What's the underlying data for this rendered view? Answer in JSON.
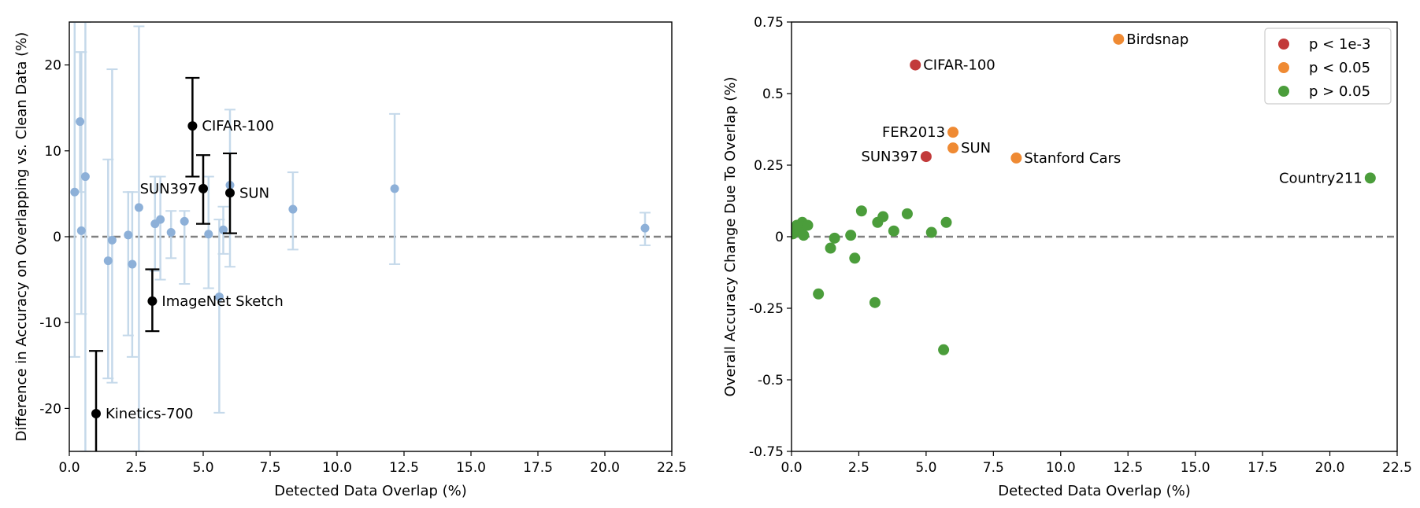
{
  "chart_data": [
    {
      "type": "scatter",
      "xlabel": "Detected Data Overlap (%)",
      "ylabel": "Difference in Accuracy on Overlapping vs. Clean Data (%)",
      "xlim": [
        0,
        22.5
      ],
      "ylim": [
        -25,
        25
      ],
      "xticks": [
        0,
        2.5,
        5,
        7.5,
        10,
        12.5,
        15,
        17.5,
        20,
        22.5
      ],
      "xtick_labels": [
        "0.0",
        "2.5",
        "5.0",
        "7.5",
        "10.0",
        "12.5",
        "15.0",
        "17.5",
        "20.0",
        "22.5"
      ],
      "yticks": [
        -20,
        -10,
        0,
        10,
        20
      ],
      "ytick_labels": [
        "-20",
        "-10",
        "0",
        "10",
        "20"
      ],
      "reference_line_y": 0,
      "colors": {
        "background_points": "#8db0d8",
        "background_errorbars": "#c5d9ea",
        "highlight": "#000000",
        "reference": "#808080"
      },
      "background_points": [
        {
          "x": 0.2,
          "y": 5.2,
          "lo": -14,
          "hi": 25
        },
        {
          "x": 0.4,
          "y": 13.4,
          "lo": 5.2,
          "hi": 21.5
        },
        {
          "x": 0.45,
          "y": 0.7,
          "lo": -9,
          "hi": 21.5
        },
        {
          "x": 0.6,
          "y": 7.0,
          "lo": -25,
          "hi": 25
        },
        {
          "x": 1.45,
          "y": -2.8,
          "lo": -16.5,
          "hi": 9
        },
        {
          "x": 1.6,
          "y": -0.4,
          "lo": -17,
          "hi": 19.5
        },
        {
          "x": 2.2,
          "y": 0.2,
          "lo": -11.5,
          "hi": 5.2
        },
        {
          "x": 2.35,
          "y": -3.2,
          "lo": -14,
          "hi": 5.2
        },
        {
          "x": 2.6,
          "y": 3.4,
          "lo": -25,
          "hi": 24.5
        },
        {
          "x": 3.2,
          "y": 1.5,
          "lo": -4,
          "hi": 7
        },
        {
          "x": 3.4,
          "y": 2.0,
          "lo": -5,
          "hi": 7
        },
        {
          "x": 3.8,
          "y": 0.5,
          "lo": -2.5,
          "hi": 3
        },
        {
          "x": 4.3,
          "y": 1.8,
          "lo": -5.5,
          "hi": 3
        },
        {
          "x": 5.2,
          "y": 0.3,
          "lo": -6,
          "hi": 7
        },
        {
          "x": 5.6,
          "y": -7.0,
          "lo": -20.5,
          "hi": 2
        },
        {
          "x": 5.75,
          "y": 0.8,
          "lo": -2,
          "hi": 3.5
        },
        {
          "x": 6.0,
          "y": 6.0,
          "lo": -3.5,
          "hi": 14.8
        },
        {
          "x": 8.35,
          "y": 3.2,
          "lo": -1.5,
          "hi": 7.5
        },
        {
          "x": 12.15,
          "y": 5.6,
          "lo": -3.2,
          "hi": 14.3
        },
        {
          "x": 21.5,
          "y": 1.0,
          "lo": -1,
          "hi": 2.8
        }
      ],
      "highlighted": [
        {
          "label": "CIFAR-100",
          "x": 4.6,
          "y": 12.9,
          "lo": 7.0,
          "hi": 18.5,
          "label_side": "right"
        },
        {
          "label": "SUN397",
          "x": 5.0,
          "y": 5.6,
          "lo": 1.5,
          "hi": 9.5,
          "label_side": "left"
        },
        {
          "label": "SUN",
          "x": 6.0,
          "y": 5.1,
          "lo": 0.4,
          "hi": 9.7,
          "label_side": "right"
        },
        {
          "label": "ImageNet Sketch",
          "x": 3.1,
          "y": -7.5,
          "lo": -11.0,
          "hi": -3.8,
          "label_side": "right"
        },
        {
          "label": "Kinetics-700",
          "x": 1.0,
          "y": -20.6,
          "lo": -27,
          "hi": -13.3,
          "label_side": "right"
        }
      ]
    },
    {
      "type": "scatter",
      "xlabel": "Detected Data Overlap (%)",
      "ylabel": "Overall Accuracy Change Due To Overlap (%)",
      "xlim": [
        0,
        22.5
      ],
      "ylim": [
        -0.75,
        0.75
      ],
      "xticks": [
        0,
        2.5,
        5,
        7.5,
        10,
        12.5,
        15,
        17.5,
        20,
        22.5
      ],
      "xtick_labels": [
        "0.0",
        "2.5",
        "5.0",
        "7.5",
        "10.0",
        "12.5",
        "15.0",
        "17.5",
        "20.0",
        "22.5"
      ],
      "yticks": [
        -0.75,
        -0.5,
        -0.25,
        0,
        0.25,
        0.5,
        0.75
      ],
      "ytick_labels": [
        "-0.75",
        "-0.5",
        "-0.25",
        "0",
        "0.25",
        "0.5",
        "0.75"
      ],
      "reference_line_y": 0,
      "legend": {
        "position": "top-right",
        "entries": [
          {
            "label": "p < 1e-3",
            "color": "#c23a3a"
          },
          {
            "label": "p < 0.05",
            "color": "#ef8a33"
          },
          {
            "label": "p > 0.05",
            "color": "#4b9d3b"
          }
        ]
      },
      "points": [
        {
          "label": "Birdsnap",
          "x": 12.15,
          "y": 0.69,
          "group": 1,
          "label_side": "right"
        },
        {
          "label": "CIFAR-100",
          "x": 4.6,
          "y": 0.6,
          "group": 0,
          "label_side": "right"
        },
        {
          "label": "FER2013",
          "x": 6.0,
          "y": 0.365,
          "group": 1,
          "label_side": "left"
        },
        {
          "label": "SUN",
          "x": 6.0,
          "y": 0.31,
          "group": 1,
          "label_side": "right"
        },
        {
          "label": "SUN397",
          "x": 5.0,
          "y": 0.28,
          "group": 0,
          "label_side": "left"
        },
        {
          "label": "Stanford Cars",
          "x": 8.35,
          "y": 0.275,
          "group": 1,
          "label_side": "right"
        },
        {
          "label": "Country211",
          "x": 21.5,
          "y": 0.205,
          "group": 2,
          "label_side": "left"
        },
        {
          "label": "",
          "x": 0.05,
          "y": 0.01,
          "group": 2
        },
        {
          "label": "",
          "x": 0.1,
          "y": 0.03,
          "group": 2
        },
        {
          "label": "",
          "x": 0.15,
          "y": 0.02,
          "group": 2
        },
        {
          "label": "",
          "x": 0.2,
          "y": 0.04,
          "group": 2
        },
        {
          "label": "",
          "x": 0.3,
          "y": 0.02,
          "group": 2
        },
        {
          "label": "",
          "x": 0.4,
          "y": 0.05,
          "group": 2
        },
        {
          "label": "",
          "x": 0.45,
          "y": 0.005,
          "group": 2
        },
        {
          "label": "",
          "x": 0.6,
          "y": 0.04,
          "group": 2
        },
        {
          "label": "",
          "x": 1.0,
          "y": -0.2,
          "group": 2
        },
        {
          "label": "",
          "x": 1.45,
          "y": -0.04,
          "group": 2
        },
        {
          "label": "",
          "x": 1.6,
          "y": -0.005,
          "group": 2
        },
        {
          "label": "",
          "x": 2.2,
          "y": 0.005,
          "group": 2
        },
        {
          "label": "",
          "x": 2.35,
          "y": -0.075,
          "group": 2
        },
        {
          "label": "",
          "x": 2.6,
          "y": 0.09,
          "group": 2
        },
        {
          "label": "",
          "x": 3.1,
          "y": -0.23,
          "group": 2
        },
        {
          "label": "",
          "x": 3.2,
          "y": 0.05,
          "group": 2
        },
        {
          "label": "",
          "x": 3.4,
          "y": 0.07,
          "group": 2
        },
        {
          "label": "",
          "x": 3.8,
          "y": 0.02,
          "group": 2
        },
        {
          "label": "",
          "x": 4.3,
          "y": 0.08,
          "group": 2
        },
        {
          "label": "",
          "x": 5.2,
          "y": 0.015,
          "group": 2
        },
        {
          "label": "",
          "x": 5.65,
          "y": -0.395,
          "group": 2
        },
        {
          "label": "",
          "x": 5.75,
          "y": 0.05,
          "group": 2
        }
      ]
    }
  ]
}
